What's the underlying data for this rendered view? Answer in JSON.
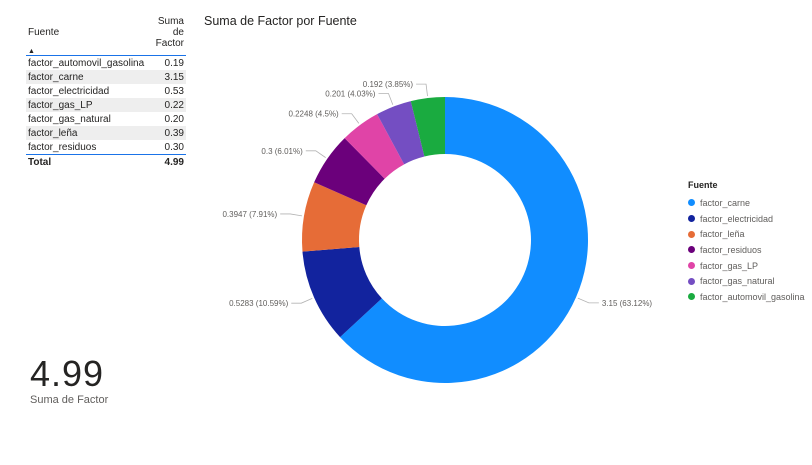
{
  "table": {
    "headers": [
      "Fuente",
      "Suma de Factor"
    ],
    "sort_indicator": "▲",
    "rows": [
      [
        "factor_automovil_gasolina",
        "0.19"
      ],
      [
        "factor_carne",
        "3.15"
      ],
      [
        "factor_electricidad",
        "0.53"
      ],
      [
        "factor_gas_LP",
        "0.22"
      ],
      [
        "factor_gas_natural",
        "0.20"
      ],
      [
        "factor_leña",
        "0.39"
      ],
      [
        "factor_residuos",
        "0.30"
      ]
    ],
    "total": [
      "Total",
      "4.99"
    ]
  },
  "card": {
    "value": "4.99",
    "label": "Suma de Factor"
  },
  "chart_data": {
    "type": "pie",
    "title": "Suma de Factor por Fuente",
    "donut": true,
    "legend_title": "Fuente",
    "legend_position": "right",
    "categories": [
      "factor_carne",
      "factor_electricidad",
      "factor_leña",
      "factor_residuos",
      "factor_gas_LP",
      "factor_gas_natural",
      "factor_automovil_gasolina"
    ],
    "values": [
      3.15,
      0.5283,
      0.3947,
      0.3,
      0.2248,
      0.201,
      0.192
    ],
    "data_labels": [
      "3.15 (63.12%)",
      "0.5283 (10.59%)",
      "0.3947 (7.91%)",
      "0.3 (6.01%)",
      "0.2248 (4.5%)",
      "0.201 (4.03%)",
      "0.192 (3.85%)"
    ],
    "colors": [
      "#118DFF",
      "#12239E",
      "#E66C37",
      "#6B007B",
      "#E044A7",
      "#744EC2",
      "#1AAB40"
    ]
  }
}
